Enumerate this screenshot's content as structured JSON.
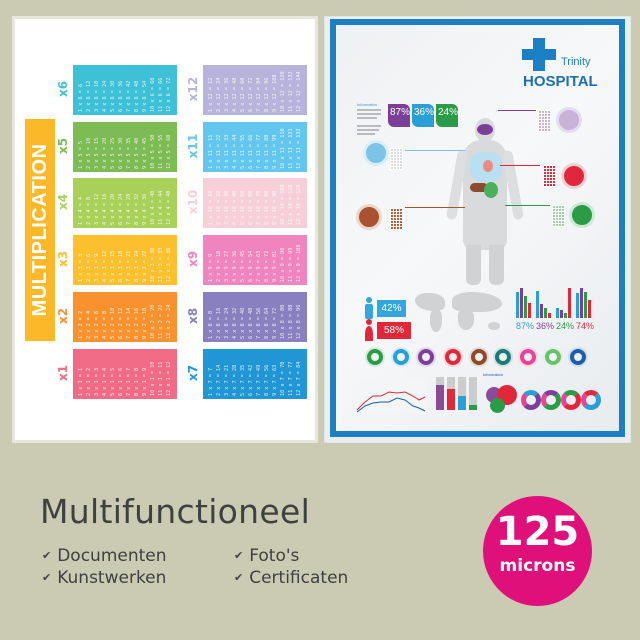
{
  "background_color": "#cbcab2",
  "multiplication_poster": {
    "title": "MULTIPLICATION",
    "banner_color": "#fbb829",
    "tables": [
      {
        "label": "x1",
        "color": "#f06b86",
        "lines": [
          "1 x 1 = 1",
          "2 x 1 = 2",
          "3 x 1 = 3",
          "4 x 1 = 4",
          "5 x 1 = 5",
          "6 x 1 = 6",
          "7 x 1 = 7",
          "8 x 1 = 8",
          "9 x 1 = 9",
          "10 x 1 = 10",
          "11 x 1 = 11",
          "12 x 1 = 12"
        ]
      },
      {
        "label": "x2",
        "color": "#f7922f",
        "lines": [
          "1 x 2 = 2",
          "2 x 2 = 4",
          "3 x 2 = 6",
          "4 x 2 = 8",
          "5 x 2 = 10",
          "6 x 2 = 12",
          "7 x 2 = 14",
          "8 x 2 = 16",
          "9 x 2 = 18",
          "10 x 2 = 20",
          "11 x 2 = 22",
          "12 x 2 = 24"
        ]
      },
      {
        "label": "x3",
        "color": "#fcc02f",
        "lines": [
          "1 x 3 = 3",
          "2 x 3 = 6",
          "3 x 3 = 9",
          "4 x 3 = 12",
          "5 x 3 = 15",
          "6 x 3 = 18",
          "7 x 3 = 21",
          "8 x 3 = 24",
          "9 x 3 = 27",
          "10 x 3 = 30",
          "11 x 3 = 33",
          "12 x 3 = 36"
        ]
      },
      {
        "label": "x4",
        "color": "#a9d15a",
        "lines": [
          "1 x 4 = 4",
          "2 x 4 = 8",
          "3 x 4 = 12",
          "4 x 4 = 16",
          "5 x 4 = 20",
          "6 x 4 = 24",
          "7 x 4 = 28",
          "8 x 4 = 32",
          "9 x 4 = 36",
          "10 x 4 = 40",
          "11 x 4 = 44",
          "12 x 4 = 48"
        ]
      },
      {
        "label": "x5",
        "color": "#7dbb55",
        "lines": [
          "1 x 5 = 5",
          "2 x 5 = 10",
          "3 x 5 = 15",
          "4 x 5 = 20",
          "5 x 5 = 25",
          "6 x 5 = 30",
          "7 x 5 = 35",
          "8 x 5 = 40",
          "9 x 5 = 45",
          "10 x 5 = 50",
          "11 x 5 = 55",
          "12 x 5 = 60"
        ]
      },
      {
        "label": "x6",
        "color": "#3ec0d6",
        "lines": [
          "1 x 6 = 6",
          "2 x 6 = 12",
          "3 x 6 = 18",
          "4 x 6 = 24",
          "5 x 6 = 30",
          "6 x 6 = 36",
          "7 x 6 = 42",
          "8 x 6 = 48",
          "9 x 6 = 54",
          "10 x 6 = 60",
          "11 x 6 = 66",
          "12 x 6 = 72"
        ]
      },
      {
        "label": "x7",
        "color": "#2196d5",
        "lines": [
          "1 x 7 = 7",
          "2 x 7 = 14",
          "3 x 7 = 21",
          "4 x 7 = 28",
          "5 x 7 = 35",
          "6 x 7 = 42",
          "7 x 7 = 49",
          "8 x 7 = 56",
          "9 x 7 = 63",
          "10 x 7 = 70",
          "11 x 7 = 77",
          "12 x 7 = 84"
        ]
      },
      {
        "label": "x8",
        "color": "#8880bf",
        "lines": [
          "1 x 8 = 8",
          "2 x 8 = 16",
          "3 x 8 = 24",
          "4 x 8 = 32",
          "5 x 8 = 40",
          "6 x 8 = 48",
          "7 x 8 = 56",
          "8 x 8 = 64",
          "9 x 8 = 72",
          "10 x 8 = 80",
          "11 x 8 = 88",
          "12 x 8 = 96"
        ]
      },
      {
        "label": "x9",
        "color": "#f084bf",
        "lines": [
          "1 x 9 = 9",
          "2 x 9 = 18",
          "3 x 9 = 27",
          "4 x 9 = 36",
          "5 x 9 = 45",
          "6 x 9 = 54",
          "7 x 9 = 63",
          "8 x 9 = 72",
          "9 x 9 = 81",
          "10 x 9 = 90",
          "11 x 9 = 99",
          "12 x 9 = 108"
        ]
      },
      {
        "label": "x10",
        "color": "#f7cfd8",
        "lines": [
          "1 x 10 = 10",
          "2 x 10 = 20",
          "3 x 10 = 30",
          "4 x 10 = 40",
          "5 x 10 = 50",
          "6 x 10 = 60",
          "7 x 10 = 70",
          "8 x 10 = 80",
          "9 x 10 = 90",
          "10 x 10 = 100",
          "11 x 10 = 110",
          "12 x 10 = 120"
        ]
      },
      {
        "label": "x11",
        "color": "#62c6ee",
        "lines": [
          "1 x 11 = 11",
          "2 x 11 = 22",
          "3 x 11 = 33",
          "4 x 11 = 44",
          "5 x 11 = 55",
          "6 x 11 = 66",
          "7 x 11 = 77",
          "8 x 11 = 88",
          "9 x 11 = 99",
          "10 x 11 = 110",
          "11 x 11 = 121",
          "12 x 11 = 132"
        ]
      },
      {
        "label": "x12",
        "color": "#b8b3db",
        "lines": [
          "1 x 12 = 12",
          "2 x 12 = 24",
          "3 x 12 = 36",
          "4 x 12 = 48",
          "5 x 12 = 60",
          "6 x 12 = 72",
          "7 x 12 = 84",
          "8 x 12 = 96",
          "9 x 12 = 108",
          "10 x 12 = 120",
          "11 x 12 = 132",
          "12 x 12 = 144"
        ]
      }
    ]
  },
  "hospital_poster": {
    "brand_top": "Trinity",
    "brand_main": "HOSPITAL",
    "brand_color": "#1c7fc3",
    "info_heading": "Information",
    "tiles": [
      {
        "value": "87%",
        "color": "#7b3f98"
      },
      {
        "value": "36%",
        "color": "#2a9fd6"
      },
      {
        "value": "24%",
        "color": "#2a9c48"
      }
    ],
    "gender": [
      {
        "icon": "male-icon",
        "value": "42%",
        "color": "#33a7dd"
      },
      {
        "icon": "female-icon",
        "value": "58%",
        "color": "#e0283a"
      }
    ],
    "bar_groups": [
      {
        "value": "87%",
        "color": "#2a9fd6"
      },
      {
        "value": "36%",
        "color": "#7b3f98"
      },
      {
        "value": "24%",
        "color": "#2a9c48"
      },
      {
        "value": "74%",
        "color": "#e0283a"
      }
    ],
    "icon_row": [
      {
        "icon": "stomach-icon",
        "color": "#2a9c48"
      },
      {
        "icon": "lungs-icon",
        "color": "#2a9fd6"
      },
      {
        "icon": "brain-icon",
        "color": "#7b3f98"
      },
      {
        "icon": "heart-organ-icon",
        "color": "#e0283a"
      },
      {
        "icon": "liver-icon",
        "color": "#8c4a2f"
      },
      {
        "icon": "tooth-icon",
        "color": "#1e7a7a"
      },
      {
        "icon": "heart-icon",
        "color": "#e64595"
      },
      {
        "icon": "sleep-icon",
        "color": "#6cc070"
      },
      {
        "icon": "apple-icon",
        "color": "#1b5fa8"
      }
    ],
    "bottom_info_heading": "Information"
  },
  "headline": "Multifunctioneel",
  "features": [
    "Documenten",
    "Kunstwerken",
    "Foto's",
    "Certificaten"
  ],
  "badge": {
    "value": "125",
    "unit": "microns",
    "color": "#e0107a"
  }
}
